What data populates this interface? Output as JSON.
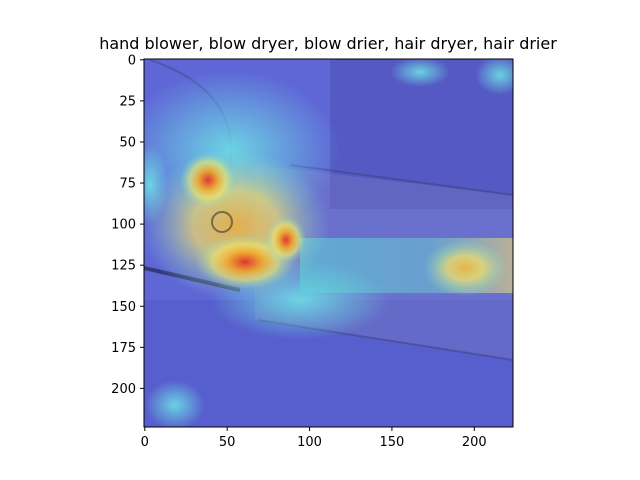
{
  "chart_data": {
    "type": "heatmap",
    "title": "hand blower, blow dryer, blow drier, hair dryer, hair drier",
    "xlabel": "",
    "ylabel": "",
    "xlim": [
      -0.5,
      223.5
    ],
    "ylim": [
      223.5,
      -0.5
    ],
    "x_ticks": [
      0,
      50,
      100,
      150,
      200
    ],
    "y_ticks": [
      0,
      25,
      50,
      75,
      100,
      125,
      150,
      175,
      200
    ],
    "colormap": "jet",
    "image_size": [
      224,
      224
    ],
    "grid": false,
    "hotspots": [
      {
        "x": 38,
        "y": 73,
        "level": 0.95
      },
      {
        "x": 55,
        "y": 125,
        "level": 0.9
      },
      {
        "x": 85,
        "y": 110,
        "level": 0.85
      },
      {
        "x": 195,
        "y": 127,
        "level": 0.7
      },
      {
        "x": 2,
        "y": 75,
        "level": 0.55
      },
      {
        "x": 170,
        "y": 10,
        "level": 0.45
      }
    ]
  }
}
